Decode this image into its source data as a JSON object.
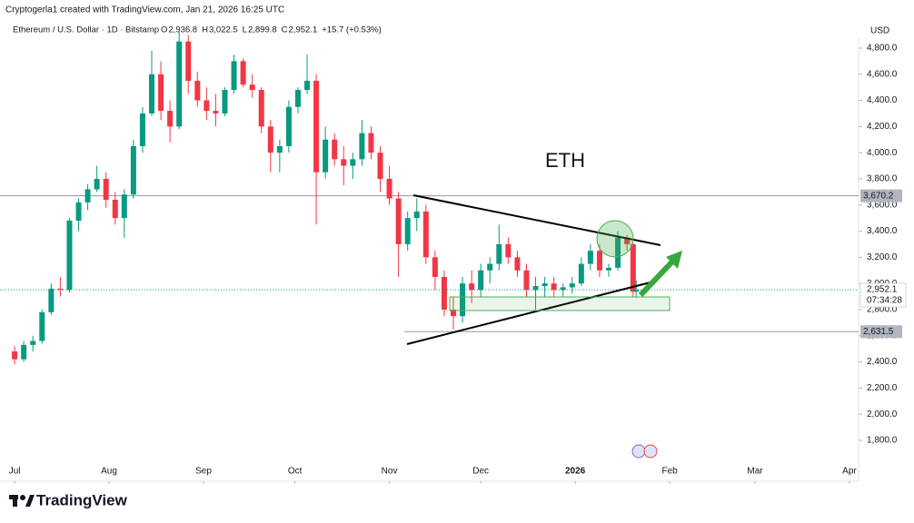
{
  "header": {
    "credit": "Cryptogerla1 created with TradingView.com, Jan 21, 2026 16:25 UTC"
  },
  "footer": {
    "brand": "TradingView"
  },
  "chart_data": {
    "type": "candlestick",
    "title": "Ethereum / U.S. Dollar · 1D · Bitstamp",
    "ohlc_legend": [
      {
        "key": "O",
        "value": "2,936.8"
      },
      {
        "key": "H",
        "value": "3,022.5"
      },
      {
        "key": "L",
        "value": "2,899.8"
      },
      {
        "key": "C",
        "value": "2,952.1"
      }
    ],
    "change": "+15.7 (+0.53%)",
    "currency": "USD",
    "annotation": "ETH",
    "up_color": "#089981",
    "down_color": "#f23645",
    "x": [
      0,
      3,
      6,
      9,
      12,
      15,
      18,
      21,
      24,
      27,
      30,
      33,
      36,
      39,
      42,
      45,
      48,
      51,
      54,
      57,
      60,
      63,
      66,
      69,
      72,
      75,
      78,
      81,
      84,
      87,
      90,
      93,
      96,
      99,
      102,
      105,
      108,
      111,
      114,
      117,
      120,
      123,
      126,
      129,
      132,
      135,
      138,
      141,
      144,
      147,
      150,
      153,
      156,
      159,
      162,
      165,
      168,
      171,
      174,
      177,
      180,
      183,
      186,
      189,
      192,
      195,
      198,
      201,
      203,
      204
    ],
    "open": [
      2480,
      2420,
      2530,
      2560,
      2780,
      2960,
      2950,
      3480,
      3620,
      3720,
      3800,
      3640,
      3500,
      3680,
      4050,
      4300,
      4600,
      4320,
      4200,
      4850,
      4550,
      4400,
      4320,
      4300,
      4480,
      4700,
      4520,
      4480,
      4200,
      4000,
      4050,
      4350,
      4480,
      4550,
      3850,
      4100,
      3950,
      3900,
      3950,
      4150,
      4000,
      3800,
      3650,
      3300,
      3500,
      3550,
      3200,
      3050,
      2800,
      2750,
      3000,
      2950,
      3100,
      3150,
      3300,
      3200,
      3100,
      2950,
      2980,
      3000,
      2950,
      2970,
      3000,
      3150,
      3250,
      3100,
      3120,
      3350,
      3300,
      2936.8
    ],
    "high": [
      2520,
      2560,
      2600,
      2800,
      3000,
      3050,
      3500,
      3650,
      3760,
      3900,
      3850,
      3700,
      3720,
      4100,
      4350,
      4780,
      4700,
      4400,
      4950,
      4900,
      4620,
      4500,
      4450,
      4500,
      4750,
      4720,
      4600,
      4500,
      4250,
      4100,
      4400,
      4500,
      4750,
      4600,
      4200,
      4150,
      4050,
      4000,
      4250,
      4200,
      4050,
      3900,
      3700,
      3550,
      3650,
      3600,
      3250,
      3100,
      2900,
      3050,
      3100,
      3150,
      3200,
      3450,
      3350,
      3250,
      3150,
      3050,
      3050,
      3050,
      3000,
      3050,
      3200,
      3300,
      3300,
      3150,
      3400,
      3370,
      3310,
      3022.5
    ],
    "low": [
      2380,
      2400,
      2480,
      2540,
      2760,
      2900,
      2930,
      3400,
      3560,
      3700,
      3580,
      3450,
      3350,
      3650,
      4000,
      4280,
      4250,
      4080,
      4180,
      4450,
      4350,
      4250,
      4200,
      4280,
      4450,
      4500,
      4420,
      4150,
      3850,
      3850,
      4000,
      4300,
      4450,
      3450,
      3800,
      3900,
      3750,
      3800,
      3900,
      3950,
      3700,
      3600,
      3050,
      3250,
      3400,
      3150,
      2950,
      2750,
      2650,
      2700,
      2850,
      2900,
      3000,
      3100,
      3150,
      3050,
      2900,
      2800,
      2900,
      2900,
      2900,
      2920,
      2980,
      3100,
      3050,
      3050,
      3100,
      3250,
      2900,
      2899.8
    ],
    "close": [
      2420,
      2530,
      2560,
      2780,
      2960,
      2950,
      3480,
      3620,
      3720,
      3800,
      3640,
      3500,
      3680,
      4050,
      4300,
      4600,
      4320,
      4200,
      4850,
      4550,
      4400,
      4320,
      4300,
      4480,
      4700,
      4520,
      4480,
      4200,
      4000,
      4050,
      4350,
      4480,
      4550,
      3850,
      4100,
      3950,
      3900,
      3950,
      4150,
      4000,
      3800,
      3650,
      3300,
      3500,
      3550,
      3200,
      3050,
      2800,
      2750,
      3000,
      2950,
      3100,
      3150,
      3300,
      3200,
      3100,
      2950,
      2980,
      3000,
      2950,
      2970,
      3000,
      3150,
      3250,
      3100,
      3120,
      3350,
      3300,
      2936.8,
      2952.1
    ],
    "xlim": [
      -4.8,
      277
    ],
    "ylim": [
      1661,
      4876
    ],
    "yticks": [
      {
        "value": 1800,
        "label": "1,800.0"
      },
      {
        "value": 2000,
        "label": "2,000.0"
      },
      {
        "value": 2200,
        "label": "2,200.0"
      },
      {
        "value": 2400,
        "label": "2,400.0"
      },
      {
        "value": 2600,
        "label": "2,600.0"
      },
      {
        "value": 2800,
        "label": "2,800.0"
      },
      {
        "value": 3000,
        "label": "3,000.0"
      },
      {
        "value": 3200,
        "label": "3,200.0"
      },
      {
        "value": 3400,
        "label": "3,400.0"
      },
      {
        "value": 3600,
        "label": "3,600.0"
      },
      {
        "value": 3800,
        "label": "3,800.0"
      },
      {
        "value": 4000,
        "label": "4,000.0"
      },
      {
        "value": 4200,
        "label": "4,200.0"
      },
      {
        "value": 4400,
        "label": "4,400.0"
      },
      {
        "value": 4600,
        "label": "4,600.0"
      },
      {
        "value": 4800,
        "label": "4,800.0"
      }
    ],
    "xticks": [
      {
        "value": 0,
        "label": "Jul"
      },
      {
        "value": 31,
        "label": "Aug"
      },
      {
        "value": 62,
        "label": "Sep"
      },
      {
        "value": 92,
        "label": "Oct"
      },
      {
        "value": 123,
        "label": "Nov"
      },
      {
        "value": 153,
        "label": "Dec"
      },
      {
        "value": 184,
        "label": "2026"
      },
      {
        "value": 215,
        "label": "Feb"
      },
      {
        "value": 243,
        "label": "Mar"
      },
      {
        "value": 274,
        "label": "Apr"
      }
    ],
    "price_lines": [
      {
        "value": 3670.2,
        "label": "3,670.2"
      },
      {
        "value": 2631.5,
        "label": "2,631.5"
      }
    ],
    "last_price": {
      "value": 2952.1,
      "label": "2,952.1",
      "countdown": "07:34:28"
    }
  }
}
